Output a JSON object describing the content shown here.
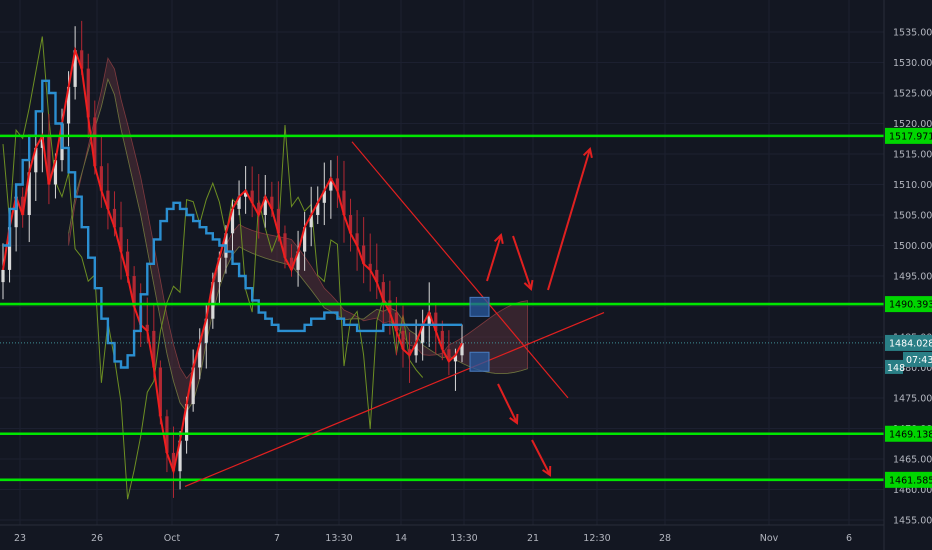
{
  "chart_data": {
    "type": "candlestick",
    "instrument_note": "",
    "price_axis": {
      "ticks": [
        "1455.000",
        "1460.000",
        "1465.000",
        "1470.000",
        "1475.000",
        "1480.000",
        "1485.000",
        "1490.000",
        "1495.000",
        "1500.000",
        "1505.000",
        "1510.000",
        "1515.000",
        "1520.000",
        "1525.000",
        "1530.000",
        "1535.000"
      ],
      "ylim": [
        1454,
        1538
      ]
    },
    "time_axis": {
      "ticks": [
        "23",
        "26",
        "Oct",
        "7",
        "13:30",
        "14",
        "13:30",
        "21",
        "12:30",
        "28",
        "Nov",
        "6"
      ]
    },
    "horizontal_levels": [
      {
        "value": 1517.971,
        "label": "1517.971",
        "color": "#00e600"
      },
      {
        "value": 1490.393,
        "label": "1490.393",
        "color": "#00e600"
      },
      {
        "value": 1469.138,
        "label": "1469.138",
        "color": "#00e600"
      },
      {
        "value": 1461.585,
        "label": "1461.585",
        "color": "#00e600"
      }
    ],
    "current_price": {
      "value": 1484.028,
      "label": "1484.028",
      "countdown": "07:43",
      "color": "#2a7f86"
    },
    "extra_tag": {
      "label": "1480.000"
    },
    "trendlines": [
      {
        "name": "descending",
        "from": {
          "x_frac": 0.0,
          "price": 1517.0
        },
        "to": {
          "x_frac": 1.0,
          "price": 1475.5
        }
      },
      {
        "name": "ascending",
        "from": {
          "x_frac": 0.0,
          "price": 1461.0
        },
        "to": {
          "x_frac": 1.0,
          "price": 1489.0
        }
      }
    ],
    "price_series": [
      1496,
      1503,
      1508,
      1505,
      1512,
      1516,
      1518,
      1510,
      1514,
      1520,
      1526,
      1532,
      1529,
      1521,
      1513,
      1509,
      1506,
      1503,
      1499,
      1495,
      1490,
      1487,
      1486,
      1480,
      1472,
      1466,
      1463,
      1468,
      1474,
      1480,
      1484,
      1488,
      1494,
      1498,
      1502,
      1506,
      1508,
      1509,
      1507,
      1505,
      1508,
      1506,
      1502,
      1498,
      1496,
      1499,
      1503,
      1505,
      1507,
      1509,
      1511,
      1509,
      1505,
      1502,
      1500,
      1497,
      1496,
      1494,
      1491,
      1489,
      1486,
      1483,
      1482,
      1484,
      1487,
      1489,
      1486,
      1483,
      1481,
      1482,
      1484
    ],
    "baseline_series": [
      1500,
      1506,
      1510,
      1514,
      1518,
      1522,
      1527,
      1525,
      1520,
      1516,
      1512,
      1508,
      1503,
      1498,
      1493,
      1488,
      1484,
      1481,
      1480,
      1482,
      1486,
      1492,
      1497,
      1501,
      1504,
      1506,
      1507,
      1506,
      1505,
      1504,
      1503,
      1502,
      1501,
      1500,
      1499,
      1497,
      1495,
      1493,
      1491,
      1489,
      1488,
      1487,
      1486,
      1486,
      1486,
      1486,
      1487,
      1488,
      1488,
      1489,
      1489,
      1488,
      1487,
      1487,
      1486,
      1486,
      1486,
      1486,
      1487,
      1487,
      1487,
      1487,
      1487,
      1487,
      1487,
      1487,
      1487,
      1487,
      1487,
      1487,
      1487
    ],
    "arrows": [
      "up",
      "up",
      "down",
      "up",
      "down",
      "down"
    ],
    "zones": [
      "breakout-box",
      "breakdown-box"
    ]
  }
}
